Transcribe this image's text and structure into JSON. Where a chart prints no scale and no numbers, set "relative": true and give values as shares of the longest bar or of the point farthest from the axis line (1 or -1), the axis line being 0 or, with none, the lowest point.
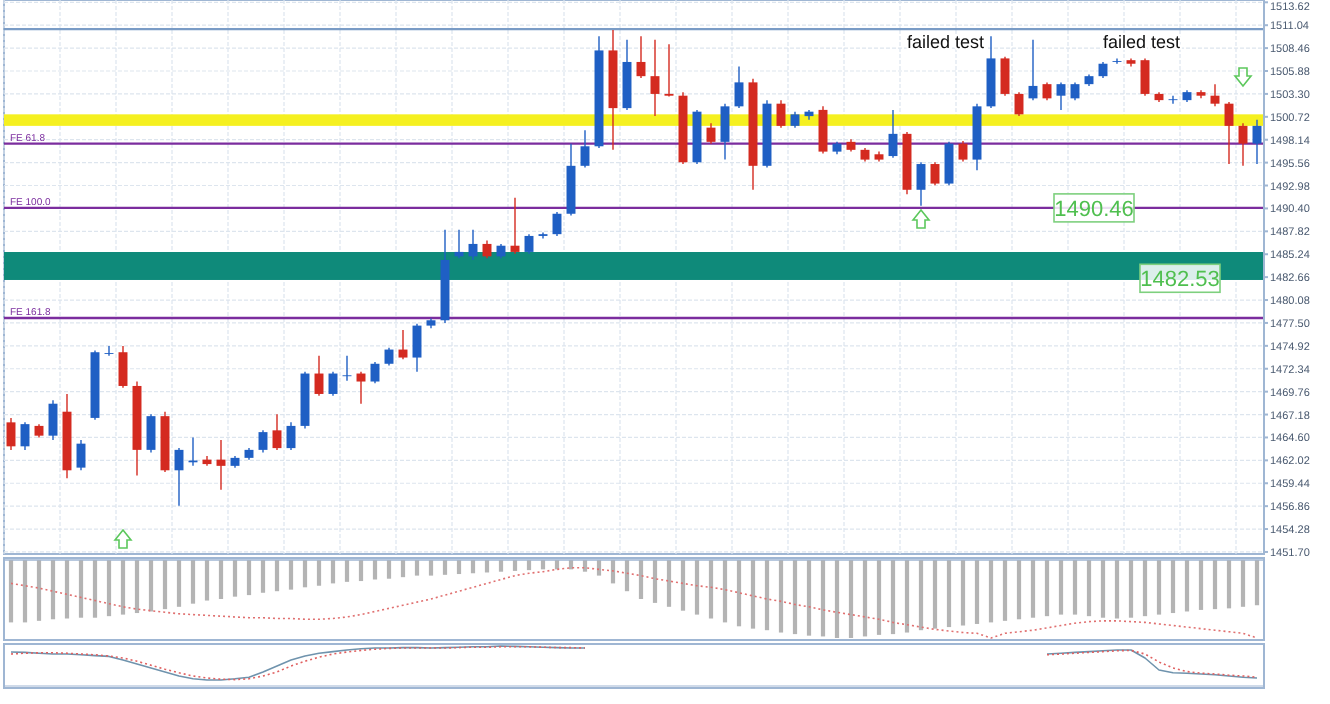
{
  "chart_data": [
    {
      "type": "candlestick",
      "categories": [
        null,
        null,
        null,
        null,
        null,
        null,
        null,
        null,
        null,
        null,
        null,
        null,
        null,
        null,
        null,
        null,
        null,
        null,
        null,
        null,
        null,
        null,
        null,
        null,
        null,
        null,
        null,
        null,
        null,
        null,
        null,
        null,
        null,
        null,
        null,
        null,
        null,
        null,
        null,
        null,
        null,
        null,
        null,
        null,
        null,
        null,
        null,
        null,
        null,
        null,
        null,
        null,
        null,
        null,
        null,
        null,
        null,
        null,
        null,
        null,
        null,
        null,
        null,
        null,
        null,
        null,
        null,
        null,
        null,
        null,
        null,
        null,
        null,
        null,
        null,
        null,
        null,
        null,
        null,
        null,
        null,
        null,
        null,
        null,
        null,
        null,
        null,
        null,
        null,
        null
      ],
      "ohlc": [
        [
          1466.3,
          1466.8,
          1463.2,
          1463.6
        ],
        [
          1463.6,
          1466.3,
          1463.2,
          1466.1
        ],
        [
          1465.9,
          1466.1,
          1464.6,
          1464.8
        ],
        [
          1464.8,
          1468.8,
          1464.3,
          1468.4
        ],
        [
          1467.5,
          1469.5,
          1460.0,
          1460.9
        ],
        [
          1461.2,
          1464.3,
          1460.9,
          1463.9
        ],
        [
          1466.8,
          1474.4,
          1466.6,
          1474.2
        ],
        [
          1474.0,
          1474.9,
          1473.8,
          1474.1
        ],
        [
          1474.2,
          1474.9,
          1470.2,
          1470.4
        ],
        [
          1470.4,
          1470.9,
          1460.3,
          1463.2
        ],
        [
          1463.2,
          1467.2,
          1462.9,
          1467.0
        ],
        [
          1467.0,
          1467.5,
          1460.7,
          1460.9
        ],
        [
          1460.9,
          1463.4,
          1456.9,
          1463.2
        ],
        [
          1461.8,
          1464.6,
          1461.4,
          1462.0
        ],
        [
          1462.1,
          1462.5,
          1461.4,
          1461.6
        ],
        [
          1462.1,
          1464.3,
          1458.7,
          1461.4
        ],
        [
          1461.4,
          1462.5,
          1461.2,
          1462.3
        ],
        [
          1462.3,
          1463.4,
          1462.1,
          1463.2
        ],
        [
          1463.2,
          1465.4,
          1462.9,
          1465.2
        ],
        [
          1465.4,
          1467.2,
          1463.2,
          1463.4
        ],
        [
          1463.4,
          1466.3,
          1463.2,
          1465.9
        ],
        [
          1465.9,
          1472.0,
          1465.6,
          1471.8
        ],
        [
          1471.8,
          1473.8,
          1469.3,
          1469.5
        ],
        [
          1469.5,
          1472.0,
          1469.3,
          1471.8
        ],
        [
          1471.5,
          1473.8,
          1471.0,
          1471.6
        ],
        [
          1471.8,
          1472.0,
          1468.4,
          1470.9
        ],
        [
          1470.9,
          1473.1,
          1470.7,
          1472.9
        ],
        [
          1472.9,
          1474.7,
          1472.7,
          1474.5
        ],
        [
          1474.5,
          1476.7,
          1473.4,
          1473.6
        ],
        [
          1473.6,
          1477.4,
          1472.0,
          1477.2
        ],
        [
          1477.2,
          1478.0,
          1476.9,
          1477.8
        ],
        [
          1477.8,
          1488.0,
          1477.5,
          1484.6
        ],
        [
          1485.0,
          1488.0,
          1484.8,
          1485.5
        ],
        [
          1485.0,
          1488.0,
          1484.6,
          1486.4
        ],
        [
          1486.4,
          1486.8,
          1484.8,
          1485.0
        ],
        [
          1485.0,
          1486.4,
          1484.8,
          1486.2
        ],
        [
          1486.2,
          1491.6,
          1485.3,
          1485.5
        ],
        [
          1485.5,
          1487.5,
          1485.3,
          1487.3
        ],
        [
          1487.3,
          1487.7,
          1487.0,
          1487.5
        ],
        [
          1487.5,
          1490.0,
          1487.3,
          1489.8
        ],
        [
          1489.8,
          1497.7,
          1489.6,
          1495.2
        ],
        [
          1495.2,
          1499.2,
          1495.0,
          1497.4
        ],
        [
          1497.4,
          1509.8,
          1497.2,
          1508.2
        ],
        [
          1508.2,
          1510.5,
          1497.0,
          1501.7
        ],
        [
          1501.7,
          1509.4,
          1501.5,
          1506.9
        ],
        [
          1506.9,
          1509.8,
          1505.1,
          1505.3
        ],
        [
          1505.3,
          1509.4,
          1500.8,
          1503.3
        ],
        [
          1503.3,
          1508.9,
          1503.0,
          1503.1
        ],
        [
          1503.1,
          1503.5,
          1495.4,
          1495.6
        ],
        [
          1495.6,
          1501.5,
          1495.4,
          1501.3
        ],
        [
          1499.5,
          1500.0,
          1497.7,
          1497.9
        ],
        [
          1497.9,
          1502.2,
          1495.9,
          1501.9
        ],
        [
          1501.9,
          1506.4,
          1501.7,
          1504.6
        ],
        [
          1504.6,
          1505.0,
          1492.5,
          1495.2
        ],
        [
          1495.2,
          1502.6,
          1495.0,
          1502.2
        ],
        [
          1502.2,
          1502.6,
          1499.5,
          1499.7
        ],
        [
          1499.7,
          1501.3,
          1499.5,
          1501.0
        ],
        [
          1500.8,
          1501.5,
          1500.4,
          1501.3
        ],
        [
          1501.5,
          1501.9,
          1496.6,
          1496.8
        ],
        [
          1496.8,
          1497.9,
          1496.5,
          1497.7
        ],
        [
          1497.9,
          1498.2,
          1496.8,
          1497.0
        ],
        [
          1497.0,
          1497.2,
          1495.7,
          1495.9
        ],
        [
          1496.5,
          1496.8,
          1495.7,
          1495.9
        ],
        [
          1496.3,
          1501.5,
          1496.1,
          1498.8
        ],
        [
          1498.8,
          1499.0,
          1492.0,
          1492.5
        ],
        [
          1492.5,
          1495.6,
          1490.7,
          1495.4
        ],
        [
          1495.4,
          1495.6,
          1493.0,
          1493.2
        ],
        [
          1493.2,
          1497.9,
          1493.0,
          1497.7
        ],
        [
          1497.7,
          1498.0,
          1495.7,
          1495.9
        ],
        [
          1495.9,
          1502.2,
          1494.7,
          1501.9
        ],
        [
          1501.9,
          1509.8,
          1501.7,
          1507.3
        ],
        [
          1507.3,
          1507.5,
          1503.1,
          1503.3
        ],
        [
          1503.3,
          1503.5,
          1500.8,
          1501.0
        ],
        [
          1502.8,
          1509.4,
          1502.6,
          1504.2
        ],
        [
          1504.4,
          1504.6,
          1502.6,
          1502.8
        ],
        [
          1503.1,
          1504.6,
          1501.5,
          1504.4
        ],
        [
          1502.8,
          1504.6,
          1502.6,
          1504.4
        ],
        [
          1504.4,
          1505.5,
          1504.2,
          1505.3
        ],
        [
          1505.3,
          1506.9,
          1505.1,
          1506.7
        ],
        [
          1506.9,
          1507.3,
          1506.7,
          1507.0
        ],
        [
          1507.1,
          1507.3,
          1506.4,
          1506.7
        ],
        [
          1507.1,
          1507.3,
          1503.1,
          1503.3
        ],
        [
          1503.3,
          1503.5,
          1502.4,
          1502.6
        ],
        [
          1502.6,
          1503.1,
          1502.2,
          1502.7
        ],
        [
          1502.6,
          1503.7,
          1502.4,
          1503.5
        ],
        [
          1503.5,
          1503.7,
          1502.8,
          1503.1
        ],
        [
          1503.1,
          1504.4,
          1501.9,
          1502.2
        ],
        [
          1502.2,
          1502.4,
          1495.4,
          1499.7
        ],
        [
          1499.7,
          1500.0,
          1495.2,
          1497.7
        ],
        [
          1497.7,
          1500.4,
          1495.4,
          1499.7
        ]
      ],
      "colors": [
        "#d42a20",
        "#1f5fc4",
        "#d42a20",
        "#1f5fc4",
        "#d42a20",
        "#1f5fc4",
        "#1f5fc4",
        "#1f5fc4",
        "#d42a20",
        "#d42a20",
        "#1f5fc4",
        "#d42a20",
        "#1f5fc4",
        "#1f5fc4",
        "#d42a20",
        "#d42a20",
        "#1f5fc4",
        "#1f5fc4",
        "#1f5fc4",
        "#d42a20",
        "#1f5fc4",
        "#1f5fc4",
        "#d42a20",
        "#1f5fc4",
        "#1f5fc4",
        "#d42a20",
        "#1f5fc4",
        "#1f5fc4",
        "#d42a20",
        "#1f5fc4",
        "#1f5fc4",
        "#1f5fc4",
        "#1f5fc4",
        "#1f5fc4",
        "#d42a20",
        "#1f5fc4",
        "#d42a20",
        "#1f5fc4",
        "#1f5fc4",
        "#1f5fc4",
        "#1f5fc4",
        "#1f5fc4",
        "#1f5fc4",
        "#d42a20",
        "#1f5fc4",
        "#d42a20",
        "#d42a20",
        "#d42a20",
        "#d42a20",
        "#1f5fc4",
        "#d42a20",
        "#1f5fc4",
        "#1f5fc4",
        "#d42a20",
        "#1f5fc4",
        "#d42a20",
        "#1f5fc4",
        "#1f5fc4",
        "#d42a20",
        "#1f5fc4",
        "#d42a20",
        "#d42a20",
        "#d42a20",
        "#1f5fc4",
        "#d42a20",
        "#1f5fc4",
        "#d42a20",
        "#1f5fc4",
        "#d42a20",
        "#1f5fc4",
        "#1f5fc4",
        "#d42a20",
        "#d42a20",
        "#1f5fc4",
        "#d42a20",
        "#1f5fc4",
        "#1f5fc4",
        "#1f5fc4",
        "#1f5fc4",
        "#1f5fc4",
        "#d42a20",
        "#d42a20",
        "#d42a20",
        "#1f5fc4",
        "#1f5fc4",
        "#d42a20",
        "#d42a20",
        "#d42a20",
        "#d42a20",
        "#1f5fc4"
      ],
      "ylim": [
        1451.47,
        1513.88
      ],
      "yticks": [
        {
          "value": 1451.7,
          "label": "1451.70"
        },
        {
          "value": 1454.28,
          "label": "1454.28"
        },
        {
          "value": 1456.86,
          "label": "1456.86"
        },
        {
          "value": 1459.44,
          "label": "1459.44"
        },
        {
          "value": 1462.02,
          "label": "1462.02"
        },
        {
          "value": 1464.6,
          "label": "1464.60"
        },
        {
          "value": 1467.18,
          "label": "1467.18"
        },
        {
          "value": 1469.76,
          "label": "1469.76"
        },
        {
          "value": 1472.34,
          "label": "1472.34"
        },
        {
          "value": 1474.92,
          "label": "1474.92"
        },
        {
          "value": 1477.5,
          "label": "1477.50"
        },
        {
          "value": 1480.08,
          "label": "1480.08"
        },
        {
          "value": 1482.66,
          "label": "1482.66"
        },
        {
          "value": 1485.24,
          "label": "1485.24"
        },
        {
          "value": 1487.82,
          "label": "1487.82"
        },
        {
          "value": 1490.4,
          "label": "1490.40"
        },
        {
          "value": 1492.98,
          "label": "1492.98"
        },
        {
          "value": 1495.56,
          "label": "1495.56"
        },
        {
          "value": 1498.14,
          "label": "1498.14"
        },
        {
          "value": 1500.72,
          "label": "1500.72"
        },
        {
          "value": 1503.3,
          "label": "1503.30"
        },
        {
          "value": 1505.88,
          "label": "1505.88"
        },
        {
          "value": 1508.46,
          "label": "1508.46"
        },
        {
          "value": 1511.04,
          "label": "1511.04"
        },
        {
          "value": 1513.62,
          "label": "1513.62"
        }
      ],
      "grid": true,
      "ref_lines": [
        {
          "axis": "y",
          "value": 1510.6,
          "color": "#7a9cc6"
        },
        {
          "axis": "y",
          "value": 1497.7,
          "label": "FE 61.8",
          "color": "#7b2d9e"
        },
        {
          "axis": "y",
          "value": 1490.46,
          "label": "FE 100.0",
          "color": "#7b2d9e"
        },
        {
          "axis": "y",
          "value": 1478.06,
          "label": "FE 161.8",
          "color": "#7b2d9e"
        }
      ],
      "bands": [
        {
          "axis": "y",
          "from": 1499.7,
          "to": 1501.0,
          "color": "#f5f020"
        },
        {
          "axis": "y",
          "from": 1482.34,
          "to": 1485.49,
          "color": "#0f8a7a"
        }
      ],
      "annotations": [
        "failed test",
        "failed test",
        {
          "text": "1490.46",
          "y": 1490.46
        },
        {
          "text": "1482.53",
          "y": 1482.53
        }
      ]
    },
    {
      "type": "bar",
      "relative": true,
      "categories": [
        null,
        null,
        null,
        null,
        null,
        null,
        null,
        null,
        null,
        null,
        null,
        null,
        null,
        null,
        null,
        null,
        null,
        null,
        null,
        null,
        null,
        null,
        null,
        null,
        null,
        null,
        null,
        null,
        null,
        null,
        null,
        null,
        null,
        null,
        null,
        null,
        null,
        null,
        null,
        null,
        null,
        null,
        null,
        null,
        null,
        null,
        null,
        null,
        null,
        null,
        null,
        null,
        null,
        null,
        null,
        null,
        null,
        null,
        null,
        null,
        null,
        null,
        null,
        null,
        null,
        null,
        null,
        null,
        null,
        null,
        null,
        null,
        null,
        null,
        null,
        null,
        null,
        null,
        null,
        null,
        null,
        null,
        null,
        null,
        null,
        null,
        null,
        null,
        null,
        null
      ],
      "color": "#b4b4b4",
      "values": [
        -0.8,
        -0.8,
        -0.78,
        -0.76,
        -0.75,
        -0.74,
        -0.74,
        -0.72,
        -0.7,
        -0.68,
        -0.66,
        -0.63,
        -0.6,
        -0.56,
        -0.52,
        -0.5,
        -0.47,
        -0.45,
        -0.42,
        -0.4,
        -0.38,
        -0.35,
        -0.33,
        -0.3,
        -0.28,
        -0.27,
        -0.25,
        -0.24,
        -0.22,
        -0.2,
        -0.2,
        -0.19,
        -0.18,
        -0.17,
        -0.16,
        -0.15,
        -0.14,
        -0.13,
        -0.12,
        -0.12,
        -0.12,
        -0.15,
        -0.2,
        -0.3,
        -0.4,
        -0.5,
        -0.55,
        -0.6,
        -0.65,
        -0.7,
        -0.75,
        -0.8,
        -0.85,
        -0.88,
        -0.9,
        -0.93,
        -0.95,
        -0.97,
        -0.98,
        -1.0,
        -1.0,
        -0.98,
        -0.96,
        -0.95,
        -0.93,
        -0.9,
        -0.88,
        -0.86,
        -0.84,
        -0.82,
        -0.8,
        -0.78,
        -0.76,
        -0.74,
        -0.72,
        -0.7,
        -0.7,
        -0.72,
        -0.74,
        -0.75,
        -0.74,
        -0.72,
        -0.7,
        -0.68,
        -0.66,
        -0.64,
        -0.63,
        -0.62,
        -0.6,
        -0.58
      ]
    },
    {
      "type": "line",
      "relative": true,
      "categories": [
        null,
        null,
        null,
        null,
        null,
        null,
        null,
        null,
        null,
        null,
        null,
        null,
        null,
        null,
        null,
        null,
        null,
        null,
        null,
        null,
        null,
        null,
        null,
        null,
        null,
        null,
        null,
        null,
        null,
        null,
        null,
        null,
        null,
        null,
        null,
        null,
        null,
        null,
        null,
        null,
        null,
        null,
        null,
        null,
        null,
        null,
        null,
        null,
        null,
        null,
        null,
        null,
        null,
        null,
        null,
        null,
        null,
        null,
        null,
        null,
        null,
        null,
        null,
        null,
        null,
        null,
        null,
        null,
        null,
        null,
        null,
        null,
        null,
        null,
        null,
        null,
        null,
        null,
        null,
        null,
        null,
        null,
        null,
        null,
        null,
        null,
        null,
        null,
        null,
        null
      ],
      "series": [
        {
          "color": "#e07070",
          "line_style": "dotted",
          "values": [
            -0.3,
            -0.33,
            -0.36,
            -0.4,
            -0.44,
            -0.48,
            -0.52,
            -0.56,
            -0.6,
            -0.63,
            -0.65,
            -0.67,
            -0.69,
            -0.7,
            -0.71,
            -0.72,
            -0.73,
            -0.74,
            -0.74,
            -0.75,
            -0.75,
            -0.76,
            -0.76,
            -0.75,
            -0.73,
            -0.7,
            -0.66,
            -0.62,
            -0.58,
            -0.54,
            -0.5,
            -0.45,
            -0.4,
            -0.35,
            -0.3,
            -0.25,
            -0.2,
            -0.17,
            -0.15,
            -0.12,
            -0.1,
            -0.1,
            -0.12,
            -0.14,
            -0.17,
            -0.2,
            -0.24,
            -0.27,
            -0.3,
            -0.33,
            -0.35,
            -0.38,
            -0.42,
            -0.46,
            -0.5,
            -0.53,
            -0.57,
            -0.6,
            -0.64,
            -0.67,
            -0.7,
            -0.73,
            -0.76,
            -0.8,
            -0.83,
            -0.86,
            -0.89,
            -0.91,
            -0.93,
            -0.94,
            -1.0,
            -0.94,
            -0.92,
            -0.9,
            -0.87,
            -0.84,
            -0.81,
            -0.79,
            -0.78,
            -0.78,
            -0.79,
            -0.8,
            -0.82,
            -0.84,
            -0.86,
            -0.88,
            -0.9,
            -0.92,
            -0.94,
            -1.0
          ]
        }
      ]
    },
    {
      "type": "line",
      "relative": true,
      "categories": [
        null,
        null,
        null,
        null,
        null,
        null,
        null,
        null,
        null,
        null,
        null,
        null,
        null,
        null,
        null,
        null,
        null,
        null,
        null,
        null,
        null,
        null,
        null,
        null,
        null,
        null,
        null,
        null,
        null,
        null,
        null,
        null,
        null,
        null,
        null,
        null,
        null,
        null,
        null,
        null,
        null,
        null,
        null,
        null,
        null,
        null,
        null,
        null,
        null,
        null,
        null,
        null,
        null,
        null,
        null,
        null,
        null,
        null,
        null,
        null,
        null,
        null,
        null,
        null,
        null,
        null,
        null,
        null,
        null,
        null,
        null,
        null,
        null,
        null,
        null,
        null,
        null,
        null,
        null,
        null,
        null,
        null,
        null,
        null,
        null,
        null,
        null,
        null,
        null,
        null
      ],
      "series": [
        {
          "color": "#6f93ad",
          "line_style": "solid",
          "values": [
            0.85,
            0.84,
            0.82,
            0.8,
            0.8,
            0.78,
            0.76,
            0.74,
            0.65,
            0.55,
            0.45,
            0.35,
            0.25,
            0.18,
            0.15,
            0.15,
            0.18,
            0.22,
            0.35,
            0.5,
            0.65,
            0.75,
            0.82,
            0.86,
            0.9,
            0.93,
            0.95,
            0.95,
            0.96,
            0.96,
            0.95,
            0.96,
            0.97,
            0.98,
            0.98,
            1.0,
            0.99,
            0.98,
            0.97,
            0.96,
            0.95,
            0.95,
            null,
            null,
            null,
            null,
            null,
            null,
            null,
            null,
            null,
            null,
            null,
            null,
            null,
            null,
            null,
            null,
            null,
            null,
            null,
            null,
            null,
            null,
            null,
            null,
            null,
            null,
            null,
            null,
            null,
            null,
            null,
            null,
            0.8,
            0.82,
            0.84,
            0.86,
            0.88,
            0.9,
            0.9,
            0.7,
            0.4,
            0.33,
            0.32,
            0.3,
            0.28,
            0.25,
            0.22,
            0.2
          ]
        },
        {
          "color": "#e06060",
          "line_style": "dotted",
          "values": [
            0.8,
            0.82,
            0.83,
            0.83,
            0.82,
            0.8,
            0.78,
            0.75,
            0.7,
            0.62,
            0.52,
            0.42,
            0.33,
            0.25,
            0.2,
            0.17,
            0.16,
            0.18,
            0.25,
            0.35,
            0.5,
            0.62,
            0.72,
            0.8,
            0.85,
            0.89,
            0.92,
            0.94,
            0.95,
            0.95,
            0.95,
            0.95,
            0.96,
            0.97,
            0.97,
            0.98,
            0.98,
            0.98,
            0.97,
            0.96,
            0.96,
            0.95,
            null,
            null,
            null,
            null,
            null,
            null,
            null,
            null,
            null,
            null,
            null,
            null,
            null,
            null,
            null,
            null,
            null,
            null,
            null,
            null,
            null,
            null,
            null,
            null,
            null,
            null,
            null,
            null,
            null,
            null,
            null,
            null,
            0.78,
            0.8,
            0.82,
            0.84,
            0.86,
            0.88,
            0.89,
            0.8,
            0.6,
            0.45,
            0.36,
            0.32,
            0.3,
            0.27,
            0.25,
            0.22
          ]
        }
      ]
    }
  ]
}
